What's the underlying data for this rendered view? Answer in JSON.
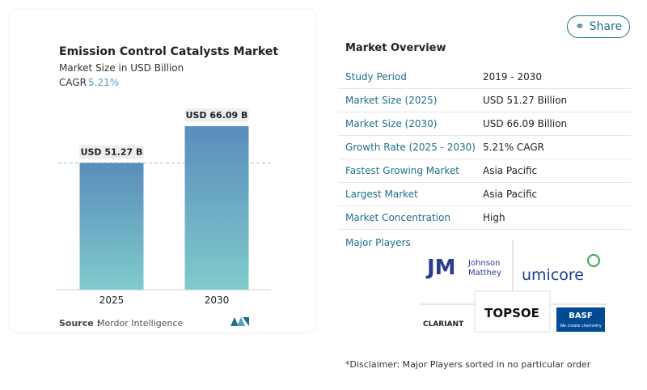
{
  "share": "Share",
  "chart_data": {
    "type": "bar",
    "title": "Emission Control Catalysts Market",
    "subtitle": "Market Size in USD Billion",
    "cagr_label": "CAGR",
    "cagr_value": "5.21%",
    "categories": [
      "2025",
      "2030"
    ],
    "values": [
      51.27,
      66.09
    ],
    "value_labels": [
      "USD 51.27 B",
      "USD 66.09 B"
    ],
    "colors": [
      "#5a8dbb",
      "#80cbcc"
    ],
    "source_label": "Source :",
    "source": "Mordor Intelligence"
  },
  "market_overview": {
    "title": "Market Overview",
    "rows": [
      [
        "Study Period",
        "2019 - 2030"
      ],
      [
        "Market Size (2025)",
        "USD 51.27 Billion"
      ],
      [
        "Market Size (2030)",
        "USD 66.09 Billion"
      ],
      [
        "Growth Rate (2025 - 2030)",
        "5.21% CAGR"
      ],
      [
        "Fastest Growing Market",
        "Asia Pacific"
      ],
      [
        "Largest Market",
        "Asia Pacific"
      ],
      [
        "Market Concentration",
        "High"
      ]
    ]
  },
  "major_players": {
    "title": "Major Players",
    "logos": {
      "jm_mark": "JM",
      "jm_name_1": "Johnson",
      "jm_name_2": "Matthey",
      "umicore": "umicore",
      "clariant": "CLARIANT",
      "topsoe": "TOPSOE",
      "basf": "BASF",
      "basf_tagline": "We create chemistry"
    }
  },
  "disclaimer": "*Disclaimer: Major Players sorted in no particular order"
}
